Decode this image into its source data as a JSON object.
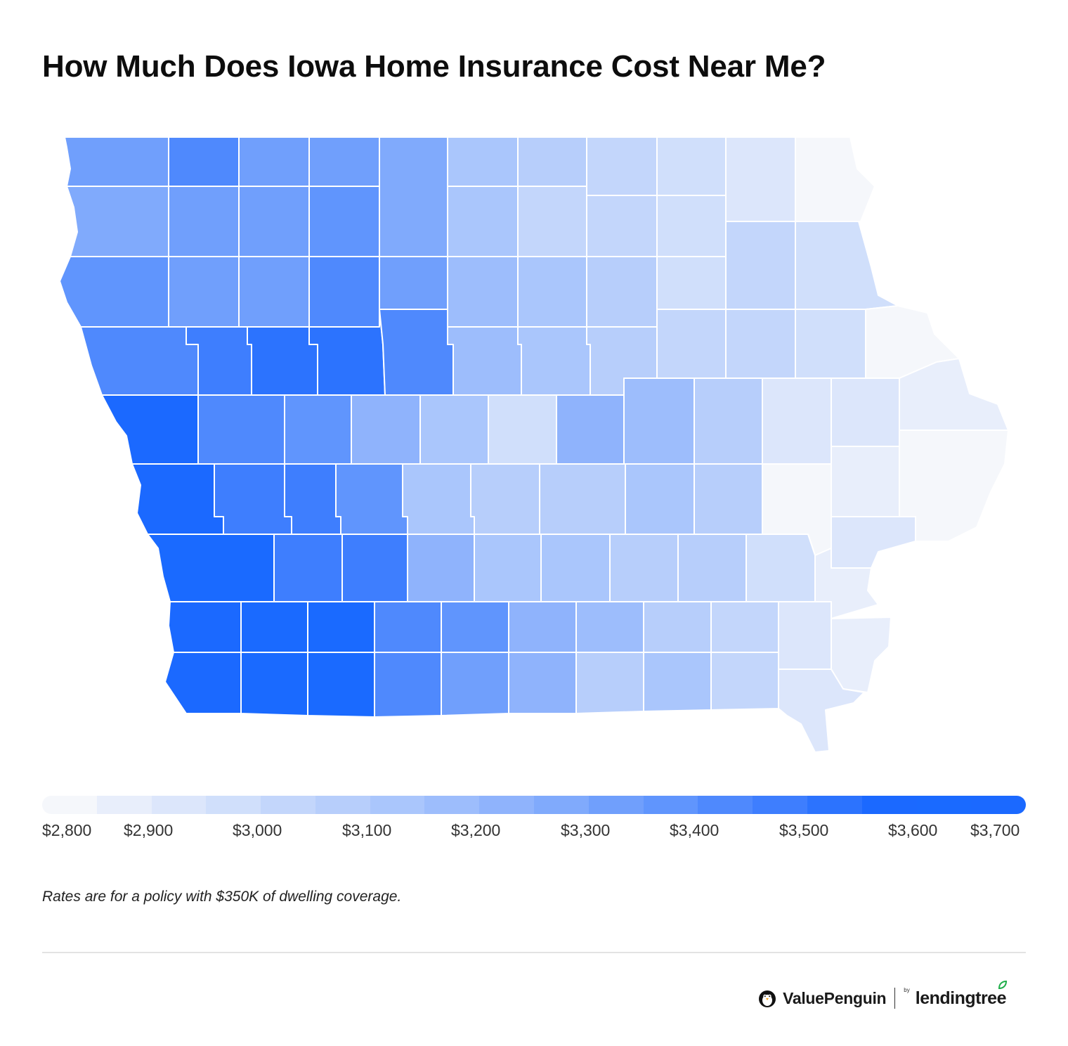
{
  "title": "How Much Does Iowa Home Insurance Cost Near Me?",
  "legend": {
    "ticks": [
      "$2,800",
      "$2,900",
      "$3,000",
      "$3,100",
      "$3,200",
      "$3,300",
      "$3,400",
      "$3,500",
      "$3,600",
      "$3,700"
    ],
    "tick_values": [
      2800,
      2900,
      3000,
      3100,
      3200,
      3300,
      3400,
      3500,
      3600,
      3700
    ],
    "min": 2800,
    "max": 3700,
    "colors": [
      "#f5f7fb",
      "#e8eefb",
      "#dce6fb",
      "#d0dffb",
      "#c3d6fb",
      "#b7cefb",
      "#aac6fc",
      "#9dbdfc",
      "#8fb3fc",
      "#80aafc",
      "#709ffc",
      "#6095fd",
      "#4f89fd",
      "#3e7efe",
      "#2c73fe",
      "#1b69ff",
      "#1a6aff",
      "#1b69ff"
    ]
  },
  "note": "Rates are for a policy with $350K of dwelling coverage.",
  "brand": {
    "name": "ValuePenguin",
    "by": "by",
    "partner": "lendingtree"
  },
  "colors": {
    "low": "#f5f7fb",
    "high": "#1a6aff",
    "title": "#0d0d0d"
  }
}
